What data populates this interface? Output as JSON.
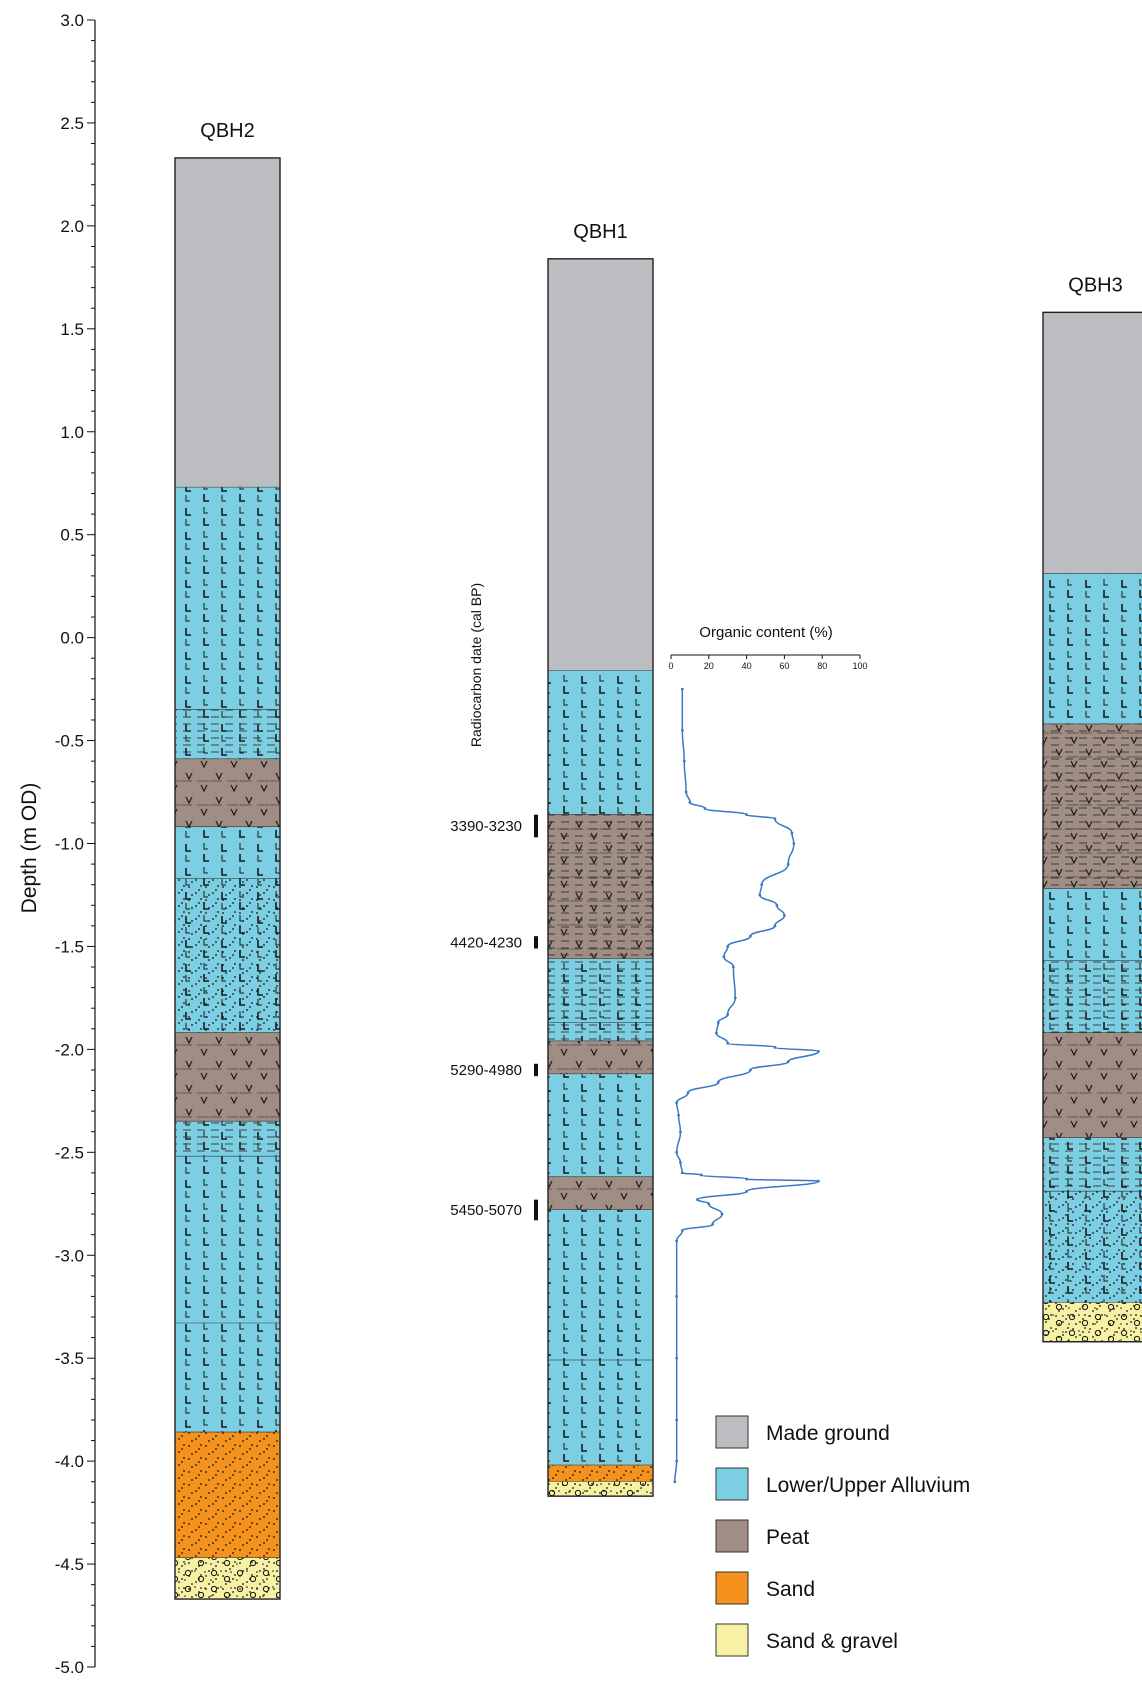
{
  "chart_data": {
    "type": "diagram",
    "yaxis": {
      "label": "Depth (m OD)",
      "range": [
        -5.0,
        3.0
      ],
      "major_ticks": [
        3.0,
        2.5,
        2.0,
        1.5,
        1.0,
        0.5,
        0.0,
        -0.5,
        -1.0,
        -1.5,
        -2.0,
        -2.5,
        -3.0,
        -3.5,
        -4.0,
        -4.5,
        -5.0
      ],
      "tick_labels": [
        "3.0",
        "2.5",
        "2.0",
        "1.5",
        "1.0",
        "0.5",
        "0.0",
        "-0.5",
        "-1.0",
        "-1.5",
        "-2.0",
        "-2.5",
        "-3.0",
        "-3.5",
        "-4.0",
        "-4.5",
        "-5.0"
      ]
    },
    "columns": [
      {
        "name": "QBH2",
        "layers": [
          {
            "top": 2.33,
            "bottom": 0.73,
            "unit": "made"
          },
          {
            "top": 0.73,
            "bottom": -0.35,
            "unit": "alluvium"
          },
          {
            "top": -0.35,
            "bottom": -0.59,
            "unit": "alluvium",
            "texture": "dash"
          },
          {
            "top": -0.59,
            "bottom": -0.92,
            "unit": "peat"
          },
          {
            "top": -0.92,
            "bottom": -1.17,
            "unit": "alluvium"
          },
          {
            "top": -1.17,
            "bottom": -1.92,
            "unit": "alluvium",
            "texture": "dots"
          },
          {
            "top": -1.92,
            "bottom": -2.35,
            "unit": "peat"
          },
          {
            "top": -2.35,
            "bottom": -2.52,
            "unit": "alluvium",
            "texture": "dash"
          },
          {
            "top": -2.52,
            "bottom": -3.33,
            "unit": "alluvium"
          },
          {
            "top": -3.33,
            "bottom": -3.86,
            "unit": "alluvium"
          },
          {
            "top": -3.86,
            "bottom": -4.47,
            "unit": "sand"
          },
          {
            "top": -4.47,
            "bottom": -4.67,
            "unit": "gravel"
          }
        ]
      },
      {
        "name": "QBH1",
        "layers": [
          {
            "top": 1.84,
            "bottom": -0.16,
            "unit": "made"
          },
          {
            "top": -0.16,
            "bottom": -0.86,
            "unit": "alluvium"
          },
          {
            "top": -0.86,
            "bottom": -1.56,
            "unit": "peat",
            "texture": "dash"
          },
          {
            "top": -1.56,
            "bottom": -1.87,
            "unit": "alluvium",
            "texture": "dash"
          },
          {
            "top": -1.87,
            "bottom": -1.96,
            "unit": "alluvium",
            "texture": "dash"
          },
          {
            "top": -1.96,
            "bottom": -2.12,
            "unit": "peat"
          },
          {
            "top": -2.12,
            "bottom": -2.62,
            "unit": "alluvium"
          },
          {
            "top": -2.62,
            "bottom": -2.78,
            "unit": "peat"
          },
          {
            "top": -2.78,
            "bottom": -3.51,
            "unit": "alluvium"
          },
          {
            "top": -3.51,
            "bottom": -4.02,
            "unit": "alluvium"
          },
          {
            "top": -4.02,
            "bottom": -4.1,
            "unit": "sand"
          },
          {
            "top": -4.1,
            "bottom": -4.17,
            "unit": "gravel"
          }
        ]
      },
      {
        "name": "QBH3",
        "layers": [
          {
            "top": 1.58,
            "bottom": 0.31,
            "unit": "made"
          },
          {
            "top": 0.31,
            "bottom": -0.42,
            "unit": "alluvium"
          },
          {
            "top": -0.42,
            "bottom": -1.22,
            "unit": "peat",
            "texture": "dash"
          },
          {
            "top": -1.22,
            "bottom": -1.57,
            "unit": "alluvium"
          },
          {
            "top": -1.57,
            "bottom": -1.92,
            "unit": "alluvium",
            "texture": "dash"
          },
          {
            "top": -1.92,
            "bottom": -2.43,
            "unit": "peat"
          },
          {
            "top": -2.43,
            "bottom": -2.69,
            "unit": "alluvium",
            "texture": "dash"
          },
          {
            "top": -2.69,
            "bottom": -3.23,
            "unit": "alluvium",
            "texture": "dots"
          },
          {
            "top": -3.23,
            "bottom": -3.42,
            "unit": "gravel"
          }
        ]
      }
    ],
    "radiocarbon": {
      "label": "Radiocarbon date (cal BP)",
      "dates": [
        {
          "label": "3390-3230",
          "top": -0.86,
          "bottom": -0.97
        },
        {
          "label": "4420-4230",
          "top": -1.45,
          "bottom": -1.51
        },
        {
          "label": "5290-4980",
          "top": -2.07,
          "bottom": -2.13
        },
        {
          "label": "5450-5070",
          "top": -2.73,
          "bottom": -2.83
        }
      ]
    },
    "organic_content": {
      "title": "Organic content (%)",
      "xrange": [
        0,
        100
      ],
      "ticks": [
        0,
        20,
        40,
        60,
        80,
        100
      ],
      "tick_labels": [
        "0",
        "20",
        "40",
        "60",
        "80",
        "100"
      ],
      "points": [
        [
          6,
          -0.25
        ],
        [
          6,
          -0.45
        ],
        [
          7,
          -0.6
        ],
        [
          8,
          -0.75
        ],
        [
          10,
          -0.8
        ],
        [
          18,
          -0.83
        ],
        [
          40,
          -0.86
        ],
        [
          55,
          -0.88
        ],
        [
          64,
          -0.95
        ],
        [
          65,
          -1.0
        ],
        [
          62,
          -1.1
        ],
        [
          48,
          -1.2
        ],
        [
          47,
          -1.25
        ],
        [
          56,
          -1.3
        ],
        [
          60,
          -1.35
        ],
        [
          55,
          -1.4
        ],
        [
          42,
          -1.45
        ],
        [
          30,
          -1.5
        ],
        [
          28,
          -1.55
        ],
        [
          33,
          -1.6
        ],
        [
          34,
          -1.75
        ],
        [
          30,
          -1.83
        ],
        [
          25,
          -1.87
        ],
        [
          24,
          -1.92
        ],
        [
          30,
          -1.97
        ],
        [
          55,
          -1.99
        ],
        [
          78,
          -2.01
        ],
        [
          62,
          -2.06
        ],
        [
          42,
          -2.1
        ],
        [
          25,
          -2.16
        ],
        [
          9,
          -2.21
        ],
        [
          3,
          -2.26
        ],
        [
          4,
          -2.32
        ],
        [
          5,
          -2.4
        ],
        [
          3,
          -2.5
        ],
        [
          5,
          -2.55
        ],
        [
          6,
          -2.6
        ],
        [
          16,
          -2.61
        ],
        [
          40,
          -2.63
        ],
        [
          78,
          -2.64
        ],
        [
          40,
          -2.69
        ],
        [
          14,
          -2.73
        ],
        [
          20,
          -2.75
        ],
        [
          27,
          -2.8
        ],
        [
          22,
          -2.85
        ],
        [
          6,
          -2.88
        ],
        [
          3,
          -2.93
        ],
        [
          3,
          -3.2
        ],
        [
          3,
          -3.5
        ],
        [
          3,
          -3.8
        ],
        [
          3,
          -4.0
        ],
        [
          2,
          -4.1
        ]
      ]
    },
    "legend": [
      {
        "label": "Made ground",
        "color": "#bcbdc0"
      },
      {
        "label": "Lower/Upper Alluvium",
        "color": "#7ccfe2"
      },
      {
        "label": "Peat",
        "color": "#a08d83"
      },
      {
        "label": "Sand",
        "color": "#f5921e"
      },
      {
        "label": "Sand & gravel",
        "color": "#f6f1a4"
      }
    ]
  }
}
